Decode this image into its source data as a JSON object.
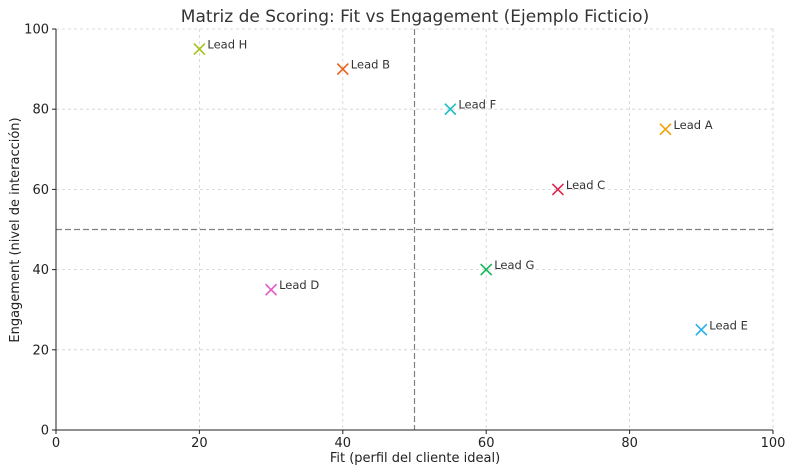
{
  "chart_data": {
    "type": "scatter",
    "title": "Matriz de Scoring: Fit vs Engagement (Ejemplo Ficticio)",
    "xlabel": "Fit (perfil del cliente ideal)",
    "ylabel": "Engagement (nivel de interacción)",
    "xlim": [
      0,
      100
    ],
    "ylim": [
      0,
      100
    ],
    "xticks": [
      0,
      20,
      40,
      60,
      80,
      100
    ],
    "yticks": [
      0,
      20,
      40,
      60,
      80,
      100
    ],
    "grid": true,
    "reference_lines": {
      "x": 50,
      "y": 50,
      "style": "dashed"
    },
    "marker": "x",
    "points": [
      {
        "label": "Lead A",
        "x": 85,
        "y": 75,
        "color": "#f0a30a"
      },
      {
        "label": "Lead B",
        "x": 40,
        "y": 90,
        "color": "#e8641b"
      },
      {
        "label": "Lead C",
        "x": 70,
        "y": 60,
        "color": "#e0234e"
      },
      {
        "label": "Lead D",
        "x": 30,
        "y": 35,
        "color": "#e05ac7"
      },
      {
        "label": "Lead E",
        "x": 90,
        "y": 25,
        "color": "#2fb3ec"
      },
      {
        "label": "Lead F",
        "x": 55,
        "y": 80,
        "color": "#17c1c1"
      },
      {
        "label": "Lead G",
        "x": 60,
        "y": 40,
        "color": "#14b85a"
      },
      {
        "label": "Lead H",
        "x": 20,
        "y": 95,
        "color": "#a5c21a"
      }
    ]
  }
}
